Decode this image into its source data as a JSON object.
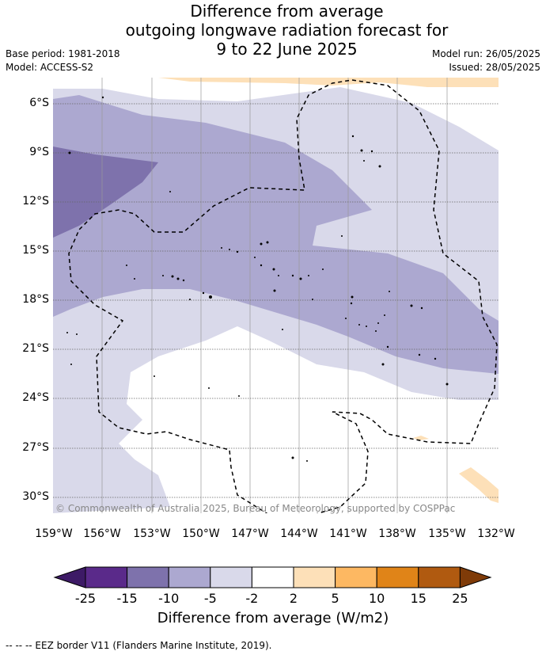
{
  "title": {
    "line1": "Difference from average",
    "line2": "outgoing longwave radiation forecast for",
    "line3": "9 to 22 June 2025"
  },
  "meta": {
    "base_period": "Base period: 1981-2018",
    "model": "Model: ACCESS-S2",
    "model_run": "Model run: 26/05/2025",
    "issued": "Issued: 28/05/2025"
  },
  "map": {
    "lat_labels": [
      "6°S",
      "9°S",
      "12°S",
      "15°S",
      "18°S",
      "21°S",
      "24°S",
      "27°S",
      "30°S"
    ],
    "lon_labels": [
      "159°W",
      "156°W",
      "153°W",
      "150°W",
      "147°W",
      "144°W",
      "141°W",
      "138°W",
      "135°W",
      "132°W"
    ],
    "copyright": "© Commonwealth of Australia 2025, Bureau of Meteorology, supported by COSPPac"
  },
  "colorbar": {
    "ticks": [
      "-25",
      "-15",
      "-10",
      "-5",
      "-2",
      "2",
      "5",
      "10",
      "15",
      "25"
    ],
    "colors": [
      "#3d1a66",
      "#5a2a8a",
      "#7e72ac",
      "#aca8d0",
      "#d9d9ea",
      "#ffffff",
      "#fde0b8",
      "#fdb862",
      "#e08418",
      "#b05a10",
      "#7f3b08"
    ],
    "label": "Difference from average (W/m2)"
  },
  "legend": {
    "eez_label": "--  --  -- EEZ border V11 (Flanders Marine Institute, 2019)."
  }
}
